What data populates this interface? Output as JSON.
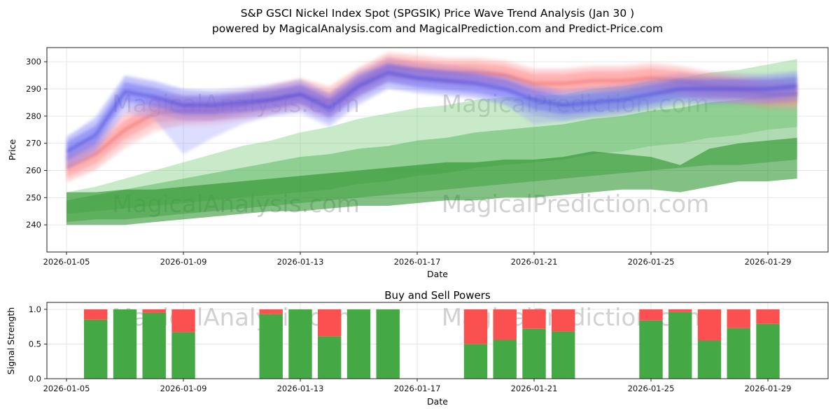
{
  "title": {
    "line1": "S&P GSCI Nickel Index Spot (SPGSIK) Price Wave Trend Analysis (Jan 30 )",
    "line2": "powered by MagicalAnalysis.com and MagicalPrediction.com and Predict-Price.com"
  },
  "watermarks": {
    "left": "MagicalAnalysis.com",
    "right": "MagicalPrediction.com"
  },
  "chart_data": [
    {
      "type": "area",
      "title": "S&P GSCI Nickel Index Spot (SPGSIK) Price Wave Trend Analysis (Jan 30 )",
      "subtitle": "powered by MagicalAnalysis.com and MagicalPrediction.com and Predict-Price.com",
      "xlabel": "Date",
      "ylabel": "Price",
      "ylim": [
        230,
        305.2
      ],
      "yticks": [
        240,
        250,
        260,
        270,
        280,
        290,
        300
      ],
      "xlim_days": [
        -0.67,
        26.06
      ],
      "start_date": "2026-01-05",
      "interval_days": 1,
      "grid": true,
      "xticks": {
        "day_offsets": [
          0,
          4,
          8,
          12,
          16,
          20,
          24
        ],
        "labels": [
          "2026-01-05",
          "2026-01-09",
          "2026-01-13",
          "2026-01-17",
          "2026-01-21",
          "2026-01-25",
          "2026-01-29"
        ]
      },
      "bands": [
        {
          "name": "green-trend-wide",
          "color": "#7ccc7c",
          "opacity": 0.42,
          "lower": [
            244,
            245,
            246,
            247,
            248,
            249,
            250,
            251,
            252,
            253,
            255,
            256,
            258,
            259,
            261,
            262,
            263,
            264,
            266,
            267,
            269,
            270,
            272,
            273,
            275,
            276
          ],
          "upper": [
            252,
            254,
            257,
            260,
            263,
            266,
            269,
            271,
            274,
            276,
            279,
            281,
            283,
            284,
            286,
            287,
            287,
            288,
            290,
            291,
            293,
            294,
            296,
            297,
            299,
            301
          ]
        },
        {
          "name": "green-trend-mid",
          "color": "#4caf50",
          "opacity": 0.45,
          "lower": [
            241,
            242,
            242,
            243,
            244,
            245,
            246,
            247,
            248,
            249,
            250,
            251,
            252,
            253,
            254,
            255,
            256,
            257,
            258,
            259,
            260,
            261,
            262,
            262,
            263,
            264
          ],
          "upper": [
            249,
            251,
            253,
            255,
            257,
            259,
            261,
            263,
            265,
            266,
            268,
            269,
            271,
            272,
            274,
            275,
            276,
            277,
            279,
            280,
            282,
            283,
            285,
            286,
            288,
            289
          ]
        },
        {
          "name": "green-trend-dark",
          "color": "#1e8c1e",
          "opacity": 0.55,
          "lower": [
            240,
            240,
            240,
            241,
            242,
            243,
            244,
            245,
            245,
            246,
            247,
            247,
            248,
            249,
            249,
            250,
            250,
            251,
            252,
            253,
            253,
            252,
            254,
            256,
            256,
            257
          ],
          "upper": [
            252,
            252,
            253,
            253,
            254,
            255,
            256,
            257,
            258,
            259,
            260,
            261,
            262,
            263,
            263,
            264,
            264,
            265,
            267,
            266,
            265,
            262,
            268,
            270,
            271,
            272
          ]
        }
      ],
      "waves": [
        {
          "name": "red-wave",
          "line_color": "#e05555",
          "fill_color": "#ff8080",
          "outer_color": "#ffb0b0",
          "core_halfwidth": 3.5,
          "outer_upper": [
            266,
            272,
            282,
            288,
            287,
            287,
            288,
            291,
            294,
            291,
            298,
            303,
            302,
            301,
            301,
            300,
            297,
            297,
            298,
            298,
            299,
            298,
            296,
            294,
            293,
            292
          ],
          "outer_lower": [
            256,
            260,
            268,
            274,
            277,
            278,
            279,
            281,
            283,
            279,
            287,
            293,
            293,
            292,
            292,
            291,
            287,
            288,
            289,
            289,
            289,
            288,
            286,
            285,
            284,
            283
          ],
          "center": [
            261,
            266,
            275,
            281,
            282,
            282,
            284,
            286,
            288,
            285,
            292,
            298,
            297,
            296,
            296,
            295,
            292,
            292,
            293,
            293,
            294,
            293,
            291,
            290,
            288,
            288
          ]
        },
        {
          "name": "blue-wave",
          "line_color": "#3333cc",
          "fill_color": "#5a5af0",
          "outer_color": "#9999ff",
          "core_halfwidth": 3.5,
          "outer_upper": [
            272,
            280,
            295,
            293,
            290,
            289,
            289,
            291,
            293,
            288,
            296,
            299,
            298,
            297,
            296,
            294,
            291,
            289,
            290,
            291,
            293,
            294,
            294,
            294,
            295,
            296
          ],
          "outer_lower": [
            260,
            266,
            281,
            279,
            266,
            272,
            277,
            280,
            281,
            276,
            284,
            290,
            289,
            288,
            287,
            284,
            277,
            278,
            280,
            281,
            283,
            285,
            285,
            285,
            285,
            286
          ],
          "center": [
            267,
            273,
            289,
            287,
            284,
            284,
            285,
            286,
            288,
            283,
            291,
            296,
            294,
            293,
            292,
            290,
            286,
            284,
            285,
            286,
            288,
            290,
            290,
            290,
            290,
            291
          ]
        }
      ]
    },
    {
      "type": "bar",
      "title": "Buy and Sell Powers",
      "xlabel": "Date",
      "ylabel": "Signal Strength",
      "ylim": [
        0,
        1.1
      ],
      "yticks": [
        0.0,
        0.5,
        1.0
      ],
      "xticks": {
        "day_offsets": [
          0,
          4,
          8,
          12,
          16,
          20,
          24
        ],
        "labels": [
          "2026-01-05",
          "2026-01-09",
          "2026-01-13",
          "2026-01-17",
          "2026-01-21",
          "2026-01-25",
          "2026-01-29"
        ]
      },
      "series": [
        {
          "name": "Buy",
          "color": "#44a944"
        },
        {
          "name": "Sell",
          "color": "#fa5050"
        }
      ],
      "bars": [
        {
          "date": "2026-01-06",
          "buy": 0.85,
          "sell": 0.15
        },
        {
          "date": "2026-01-07",
          "buy": 1.0,
          "sell": 0.0
        },
        {
          "date": "2026-01-08",
          "buy": 0.95,
          "sell": 0.05
        },
        {
          "date": "2026-01-09",
          "buy": 0.67,
          "sell": 0.33
        },
        {
          "date": "2026-01-12",
          "buy": 0.93,
          "sell": 0.07
        },
        {
          "date": "2026-01-13",
          "buy": 1.0,
          "sell": 0.0
        },
        {
          "date": "2026-01-14",
          "buy": 0.61,
          "sell": 0.39
        },
        {
          "date": "2026-01-15",
          "buy": 1.0,
          "sell": 0.0
        },
        {
          "date": "2026-01-16",
          "buy": 1.0,
          "sell": 0.0
        },
        {
          "date": "2026-01-19",
          "buy": 0.5,
          "sell": 0.5
        },
        {
          "date": "2026-01-20",
          "buy": 0.56,
          "sell": 0.44
        },
        {
          "date": "2026-01-21",
          "buy": 0.72,
          "sell": 0.28
        },
        {
          "date": "2026-01-22",
          "buy": 0.68,
          "sell": 0.32
        },
        {
          "date": "2026-01-25",
          "buy": 0.84,
          "sell": 0.16
        },
        {
          "date": "2026-01-26",
          "buy": 0.96,
          "sell": 0.04
        },
        {
          "date": "2026-01-27",
          "buy": 0.55,
          "sell": 0.45
        },
        {
          "date": "2026-01-28",
          "buy": 0.73,
          "sell": 0.27
        },
        {
          "date": "2026-01-29",
          "buy": 0.79,
          "sell": 0.21
        }
      ]
    }
  ]
}
